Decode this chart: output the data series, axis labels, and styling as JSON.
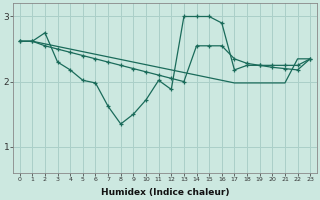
{
  "background_color": "#cce8e0",
  "grid_color": "#aacfc8",
  "line_color": "#1a6b5a",
  "xlabel": "Humidex (Indice chaleur)",
  "yticks": [
    1,
    2,
    3
  ],
  "xticks": [
    0,
    1,
    2,
    3,
    4,
    5,
    6,
    7,
    8,
    9,
    10,
    11,
    12,
    13,
    14,
    15,
    16,
    17,
    18,
    19,
    20,
    21,
    22,
    23
  ],
  "ylim": [
    0.6,
    3.2
  ],
  "xlim": [
    -0.5,
    23.5
  ],
  "series1_x": [
    0,
    1,
    2,
    3,
    4,
    5,
    6,
    7,
    8,
    9,
    10,
    11,
    12,
    13,
    14,
    15,
    16,
    17,
    18,
    19,
    20,
    21,
    22,
    23
  ],
  "series1_y": [
    2.62,
    2.62,
    2.58,
    2.54,
    2.5,
    2.46,
    2.42,
    2.38,
    2.34,
    2.3,
    2.26,
    2.22,
    2.18,
    2.14,
    2.1,
    2.06,
    2.02,
    1.98,
    1.98,
    1.98,
    1.98,
    1.98,
    2.35,
    2.35
  ],
  "series2_x": [
    0,
    1,
    2,
    3,
    4,
    5,
    6,
    7,
    8,
    9,
    10,
    11,
    12,
    13,
    14,
    15,
    16,
    17,
    18,
    19,
    20,
    21,
    22,
    23
  ],
  "series2_y": [
    2.62,
    2.62,
    2.75,
    2.3,
    2.18,
    2.02,
    1.98,
    1.62,
    1.35,
    1.5,
    1.72,
    2.02,
    1.88,
    3.0,
    3.0,
    3.0,
    2.9,
    2.18,
    2.25,
    2.25,
    2.25,
    2.25,
    2.25,
    2.35
  ],
  "series3_x": [
    0,
    1,
    2,
    3,
    4,
    5,
    6,
    7,
    8,
    9,
    10,
    11,
    12,
    13,
    14,
    15,
    16,
    17,
    18,
    19,
    20,
    21,
    22,
    23
  ],
  "series3_y": [
    2.62,
    2.62,
    2.55,
    2.5,
    2.45,
    2.4,
    2.35,
    2.3,
    2.25,
    2.2,
    2.15,
    2.1,
    2.05,
    2.0,
    2.55,
    2.55,
    2.55,
    2.35,
    2.28,
    2.25,
    2.22,
    2.2,
    2.18,
    2.35
  ]
}
